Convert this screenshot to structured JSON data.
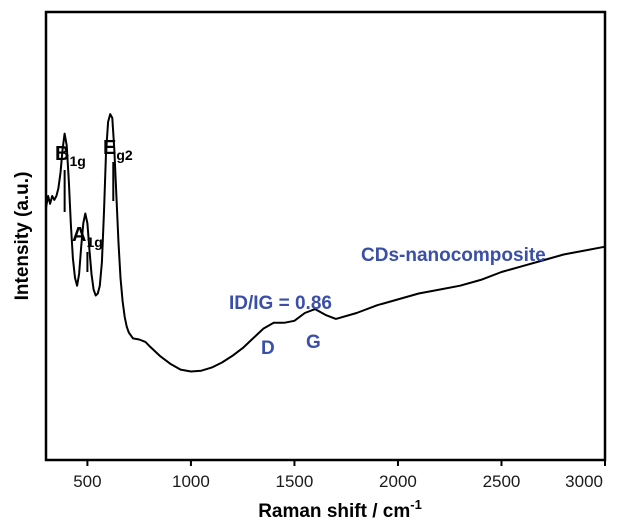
{
  "chart_data": {
    "type": "line",
    "title": "",
    "xlabel_main": "Raman shift / cm",
    "xlabel_sup": "-1",
    "ylabel": "Intensity (a.u.)",
    "xlim": [
      300,
      3000
    ],
    "ylim": [
      0,
      1
    ],
    "x_ticks": [
      500,
      1000,
      1500,
      2000,
      2500,
      3000
    ],
    "x_tick_labels": [
      "500",
      "1000",
      "1500",
      "2000",
      "2500",
      "3000"
    ],
    "y_tick_labels": false,
    "grid": false,
    "legend": "none",
    "line_color": "#000000",
    "series": [
      {
        "x": [
          300,
          310,
          320,
          330,
          340,
          350,
          360,
          370,
          380,
          390,
          400,
          410,
          420,
          430,
          440,
          450,
          460,
          470,
          480,
          490,
          500,
          510,
          520,
          530,
          540,
          550,
          560,
          570,
          580,
          590,
          600,
          610,
          620,
          630,
          640,
          650,
          660,
          670,
          680,
          690,
          700,
          720,
          750,
          780,
          800,
          850,
          900,
          950,
          1000,
          1050,
          1100,
          1150,
          1200,
          1250,
          1300,
          1350,
          1400,
          1450,
          1500,
          1550,
          1600,
          1650,
          1700,
          1800,
          1900,
          2000,
          2100,
          2200,
          2300,
          2400,
          2500,
          2600,
          2700,
          2800,
          2900,
          3000
        ],
        "values": [
          0.57,
          0.6,
          0.58,
          0.6,
          0.59,
          0.6,
          0.62,
          0.66,
          0.72,
          0.76,
          0.73,
          0.64,
          0.53,
          0.44,
          0.39,
          0.37,
          0.4,
          0.47,
          0.53,
          0.555,
          0.53,
          0.46,
          0.4,
          0.36,
          0.345,
          0.35,
          0.37,
          0.43,
          0.56,
          0.71,
          0.79,
          0.81,
          0.8,
          0.72,
          0.6,
          0.48,
          0.39,
          0.33,
          0.29,
          0.265,
          0.25,
          0.235,
          0.232,
          0.226,
          0.215,
          0.19,
          0.17,
          0.155,
          0.15,
          0.152,
          0.16,
          0.173,
          0.19,
          0.21,
          0.235,
          0.26,
          0.275,
          0.275,
          0.28,
          0.3,
          0.31,
          0.295,
          0.285,
          0.3,
          0.32,
          0.335,
          0.35,
          0.36,
          0.37,
          0.385,
          0.405,
          0.42,
          0.435,
          0.45,
          0.46,
          0.47
        ]
      }
    ],
    "annotations": {
      "b1g_main": "B",
      "b1g_sub": "1g",
      "a1g_main": "A",
      "a1g_sub": "1g",
      "eg2_main": "E",
      "eg2_sub": "g2",
      "d_label": "D",
      "g_label": "G",
      "ratio_label": "ID/IG = 0.86",
      "sample_label": "CDs-nanocomposite"
    }
  }
}
